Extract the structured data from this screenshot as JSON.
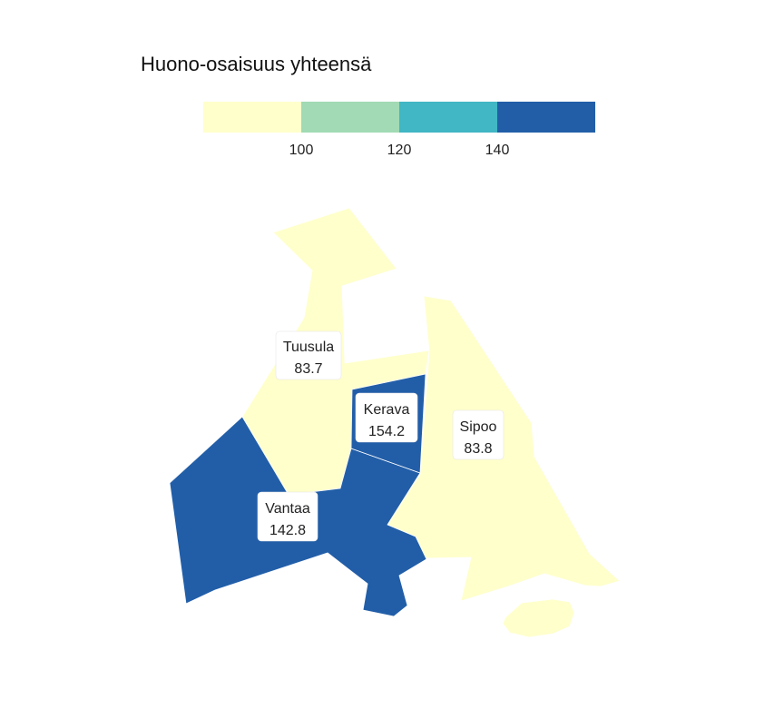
{
  "title": "Huono-osaisuus yhteensä",
  "legend": {
    "colors": [
      "#ffffcc",
      "#a1dab4",
      "#41b6c4",
      "#225ea8"
    ],
    "breaks": [
      "100",
      "120",
      "140"
    ]
  },
  "regions": [
    {
      "id": "tuusula",
      "name": "Tuusula",
      "value": "83.7",
      "color": "#ffffcc"
    },
    {
      "id": "kerava",
      "name": "Kerava",
      "value": "154.2",
      "color": "#225ea8"
    },
    {
      "id": "sipoo",
      "name": "Sipoo",
      "value": "83.8",
      "color": "#ffffcc"
    },
    {
      "id": "vantaa",
      "name": "Vantaa",
      "value": "142.8",
      "color": "#225ea8"
    }
  ]
}
